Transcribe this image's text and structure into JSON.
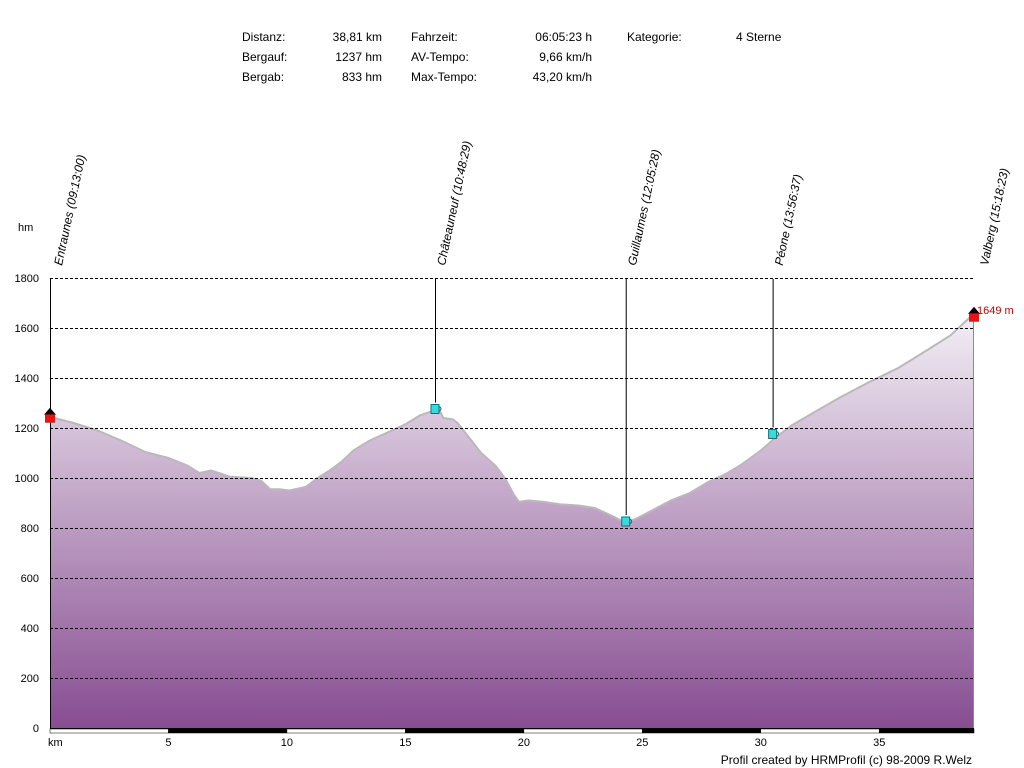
{
  "stats": {
    "distanz_label": "Distanz:",
    "distanz_value": "38,81 km",
    "bergauf_label": "Bergauf:",
    "bergauf_value": "1237 hm",
    "bergab_label": "Bergab:",
    "bergab_value": "833 hm",
    "fahrzeit_label": "Fahrzeit:",
    "fahrzeit_value": "06:05:23 h",
    "avtempo_label": "AV-Tempo:",
    "avtempo_value": "9,66 km/h",
    "maxtempo_label": "Max-Tempo:",
    "maxtempo_value": "43,20 km/h",
    "kategorie_label": "Kategorie:",
    "kategorie_value": "4 Sterne"
  },
  "credit": "Profil created by HRMProfil (c) 98-2009 R.Welz",
  "colors": {
    "fill_top": "#f2eef4",
    "fill_bottom": "#874d91",
    "profile_line": "#b9b9b9",
    "grid": "#000000",
    "end_label": "#cc0000",
    "marker_red": "#ee1111",
    "marker_cyan": "#33dddd",
    "right_edge": "#4aa3bd"
  },
  "chart_data": {
    "type": "area",
    "title": "",
    "ylabel": "hm",
    "xlabel": "km",
    "xlim": [
      0,
      39
    ],
    "ylim": [
      0,
      1800
    ],
    "x_ticks": [
      5,
      10,
      15,
      20,
      25,
      30,
      35
    ],
    "y_ticks": [
      0,
      200,
      400,
      600,
      800,
      1000,
      1200,
      1400,
      1600,
      1800
    ],
    "grid": true,
    "end_label": "1649 m",
    "profile": [
      [
        0,
        1245
      ],
      [
        1,
        1220
      ],
      [
        2,
        1190
      ],
      [
        3,
        1150
      ],
      [
        4,
        1105
      ],
      [
        5,
        1080
      ],
      [
        5.8,
        1050
      ],
      [
        6.3,
        1020
      ],
      [
        6.8,
        1030
      ],
      [
        7.3,
        1015
      ],
      [
        7.6,
        1005
      ],
      [
        8.5,
        1000
      ],
      [
        8.9,
        990
      ],
      [
        9.3,
        955
      ],
      [
        9.7,
        955
      ],
      [
        10.1,
        950
      ],
      [
        10.8,
        965
      ],
      [
        11.3,
        1000
      ],
      [
        11.8,
        1030
      ],
      [
        12.3,
        1065
      ],
      [
        12.8,
        1110
      ],
      [
        13.5,
        1150
      ],
      [
        14.2,
        1180
      ],
      [
        15,
        1215
      ],
      [
        15.6,
        1250
      ],
      [
        16.2,
        1270
      ],
      [
        16.4,
        1280
      ],
      [
        16.6,
        1240
      ],
      [
        17,
        1235
      ],
      [
        17.2,
        1220
      ],
      [
        17.7,
        1160
      ],
      [
        18.2,
        1100
      ],
      [
        18.8,
        1050
      ],
      [
        19.2,
        1000
      ],
      [
        19.6,
        930
      ],
      [
        19.8,
        905
      ],
      [
        20.2,
        910
      ],
      [
        20.8,
        905
      ],
      [
        21.5,
        895
      ],
      [
        22.3,
        890
      ],
      [
        23,
        880
      ],
      [
        23.8,
        845
      ],
      [
        24.3,
        820
      ],
      [
        24.8,
        840
      ],
      [
        25.5,
        875
      ],
      [
        26.2,
        910
      ],
      [
        27,
        940
      ],
      [
        27.8,
        985
      ],
      [
        28.5,
        1015
      ],
      [
        29.2,
        1055
      ],
      [
        30,
        1110
      ],
      [
        30.6,
        1160
      ],
      [
        31.3,
        1210
      ],
      [
        32.2,
        1260
      ],
      [
        33.3,
        1320
      ],
      [
        34.5,
        1380
      ],
      [
        35.8,
        1440
      ],
      [
        37,
        1510
      ],
      [
        38,
        1570
      ],
      [
        38.8,
        1640
      ],
      [
        39,
        1649
      ]
    ],
    "waypoints": [
      {
        "name": "Entraunes (09:13:00)",
        "km": 0,
        "alt": 1245,
        "marker": "start"
      },
      {
        "name": "Châteauneuf (10:48:29)",
        "km": 16.25,
        "alt": 1270,
        "marker": "cup"
      },
      {
        "name": "Guillaumes (12:05:28)",
        "km": 24.3,
        "alt": 820,
        "marker": "cup"
      },
      {
        "name": "Péone (13:56:37)",
        "km": 30.5,
        "alt": 1170,
        "marker": "cup"
      },
      {
        "name": "Valberg (15:18:23)",
        "km": 39,
        "alt": 1649,
        "marker": "end"
      }
    ]
  }
}
